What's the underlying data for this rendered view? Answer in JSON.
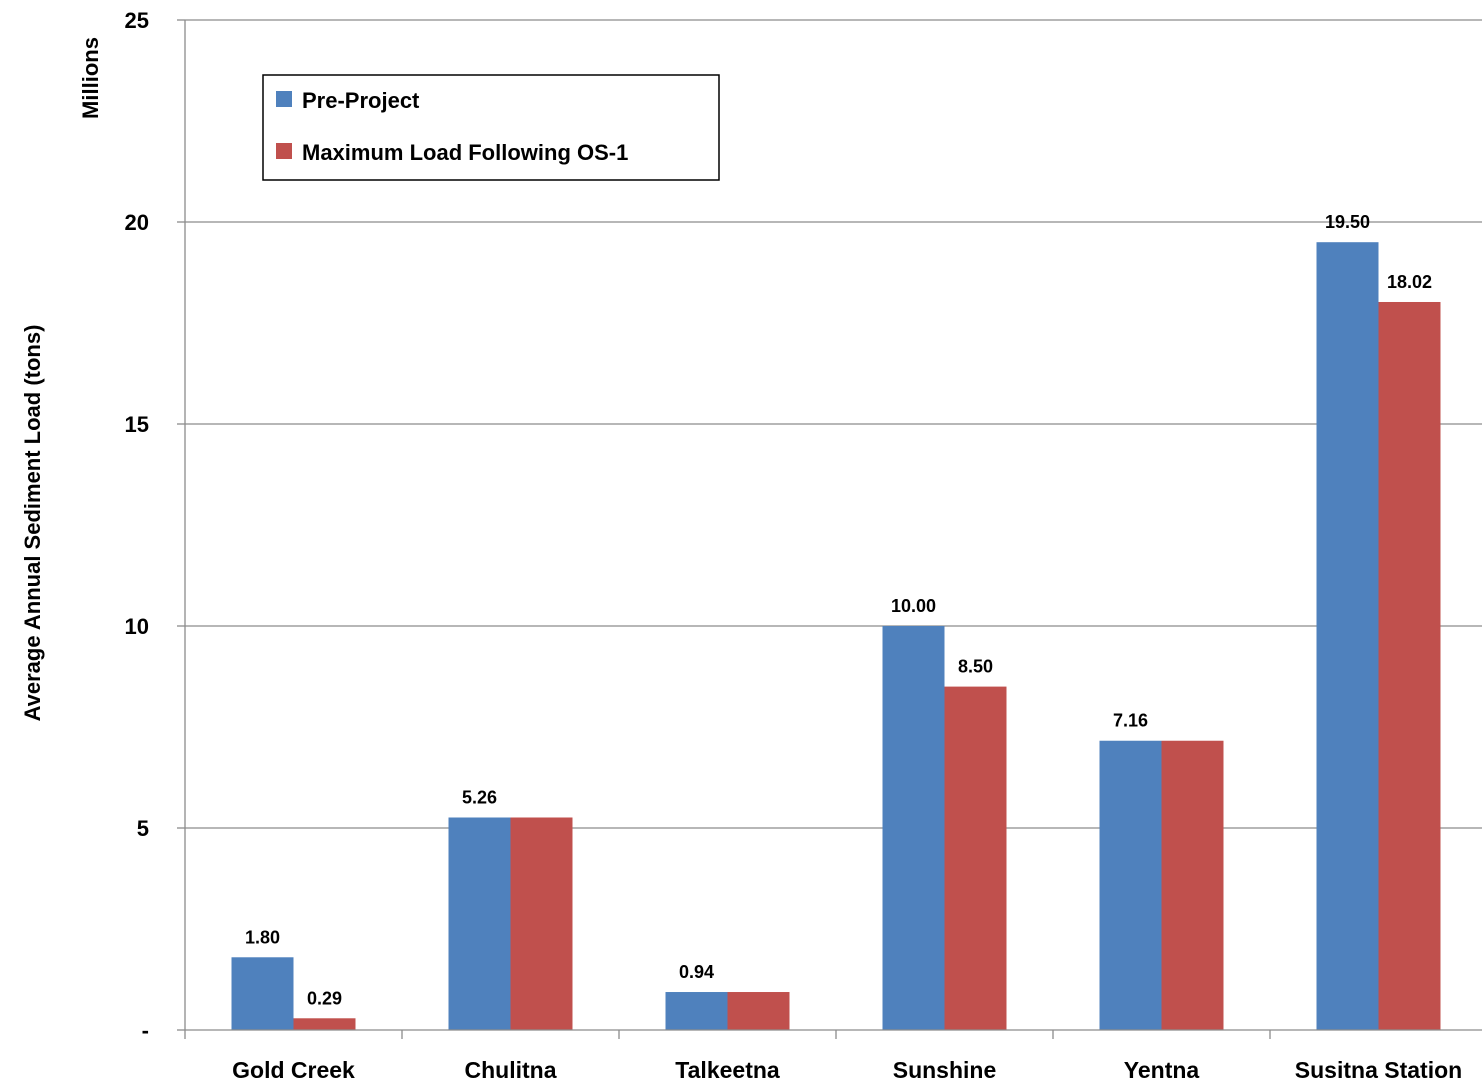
{
  "chart_data": {
    "type": "bar",
    "categories": [
      "Gold Creek",
      "Chulitna",
      "Talkeetna",
      "Sunshine",
      "Yentna",
      "Susitna Station"
    ],
    "series": [
      {
        "name": "Pre-Project",
        "color": "#4F81BD",
        "values": [
          1.8,
          5.26,
          0.94,
          10.0,
          7.16,
          19.5
        ],
        "labels": [
          "1.80",
          "5.26",
          "0.94",
          "10.00",
          "7.16",
          "19.50"
        ]
      },
      {
        "name": "Maximum Load Following OS-1",
        "color": "#C0504D",
        "values": [
          0.29,
          5.26,
          0.94,
          8.5,
          7.16,
          18.02
        ],
        "labels": [
          "0.29",
          "",
          "",
          "8.50",
          "",
          "18.02"
        ]
      }
    ],
    "ylabel": "Average Annual Sediment Load (tons)",
    "yunits": "Millions",
    "ylim": [
      0,
      25
    ],
    "yticks": [
      0,
      5,
      10,
      15,
      20,
      25
    ],
    "ytick_labels": [
      "-",
      "5",
      "10",
      "15",
      "20",
      "25"
    ],
    "grid": true,
    "legend_position": "top-left"
  }
}
